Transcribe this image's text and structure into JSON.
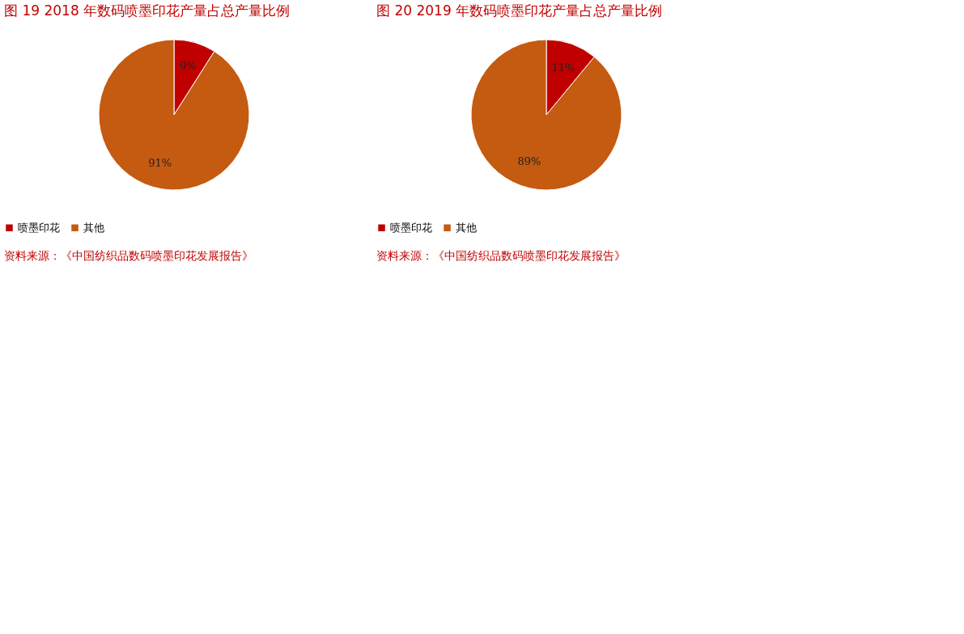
{
  "chart_data": [
    {
      "type": "pie",
      "title": "图 19   2018 年数码喷墨印花产量占总产量比例",
      "categories": [
        "喷墨印花",
        "其他"
      ],
      "values": [
        9,
        91
      ],
      "colors": [
        "#c00000",
        "#c55a11"
      ],
      "value_labels": [
        "9%",
        "91%"
      ],
      "legend": "bottom",
      "annotations": [
        "资料来源：《中国纺织品数码喷墨印花发展报告》"
      ]
    },
    {
      "type": "pie",
      "title": "图 20   2019 年数码喷墨印花产量占总产量比例",
      "categories": [
        "喷墨印花",
        "其他"
      ],
      "values": [
        11,
        89
      ],
      "colors": [
        "#c00000",
        "#c55a11"
      ],
      "value_labels": [
        "11%",
        "89%"
      ],
      "legend": "bottom",
      "annotations": [
        "资料来源：《中国纺织品数码喷墨印花发展报告》"
      ]
    }
  ]
}
